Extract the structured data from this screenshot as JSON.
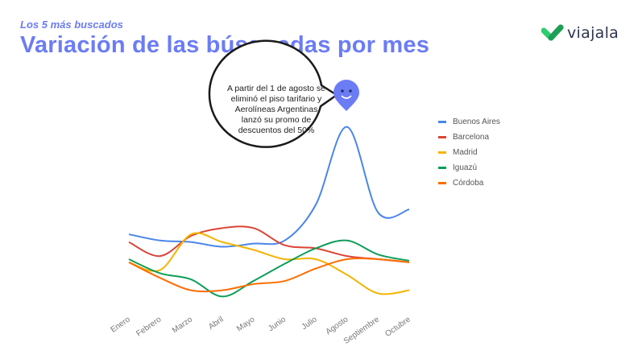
{
  "header": {
    "eyebrow": "Los 5 más buscados",
    "title": "Variación de las búsquedas por mes"
  },
  "logo": {
    "text": "viajala",
    "icon": "heart-check-icon",
    "colors": [
      "#2ecc71",
      "#1f9e58"
    ]
  },
  "annotation": {
    "text": "A partir del 1 de agosto se eliminó el piso tarifario y Aerolíneas Argentinas lanzó su promo de descuentos del 50%",
    "marker_icon": "smiley-map-pin-icon",
    "marker_color": "#6b7cf5"
  },
  "chart_data": {
    "type": "line",
    "categories": [
      "Enero",
      "Febrero",
      "Marzo",
      "Abril",
      "Mayo",
      "Junio",
      "Julio",
      "Agosto",
      "Septiembre",
      "Octubre"
    ],
    "series": [
      {
        "name": "Buenos Aires",
        "color": "#4a86e8",
        "values": [
          26,
          22,
          21,
          18,
          20,
          22,
          45,
          95,
          40,
          42
        ]
      },
      {
        "name": "Barcelona",
        "color": "#db4437",
        "values": [
          21,
          12,
          25,
          30,
          30,
          19,
          17,
          12,
          10,
          8
        ]
      },
      {
        "name": "Madrid",
        "color": "#f4b400",
        "values": [
          8,
          3,
          26,
          21,
          16,
          10,
          10,
          0,
          -12,
          -10
        ]
      },
      {
        "name": "Iguazú",
        "color": "#0f9d58",
        "values": [
          10,
          1,
          -3,
          -14,
          -4,
          7,
          17,
          22,
          13,
          9
        ]
      },
      {
        "name": "Córdoba",
        "color": "#ff6d00",
        "values": [
          8,
          -2,
          -10,
          -10,
          -6,
          -4,
          4,
          10,
          10,
          8
        ]
      }
    ],
    "xlabel": "",
    "ylabel": "",
    "ylim": [
      -20,
      100
    ],
    "grid": false,
    "legend": "right"
  }
}
